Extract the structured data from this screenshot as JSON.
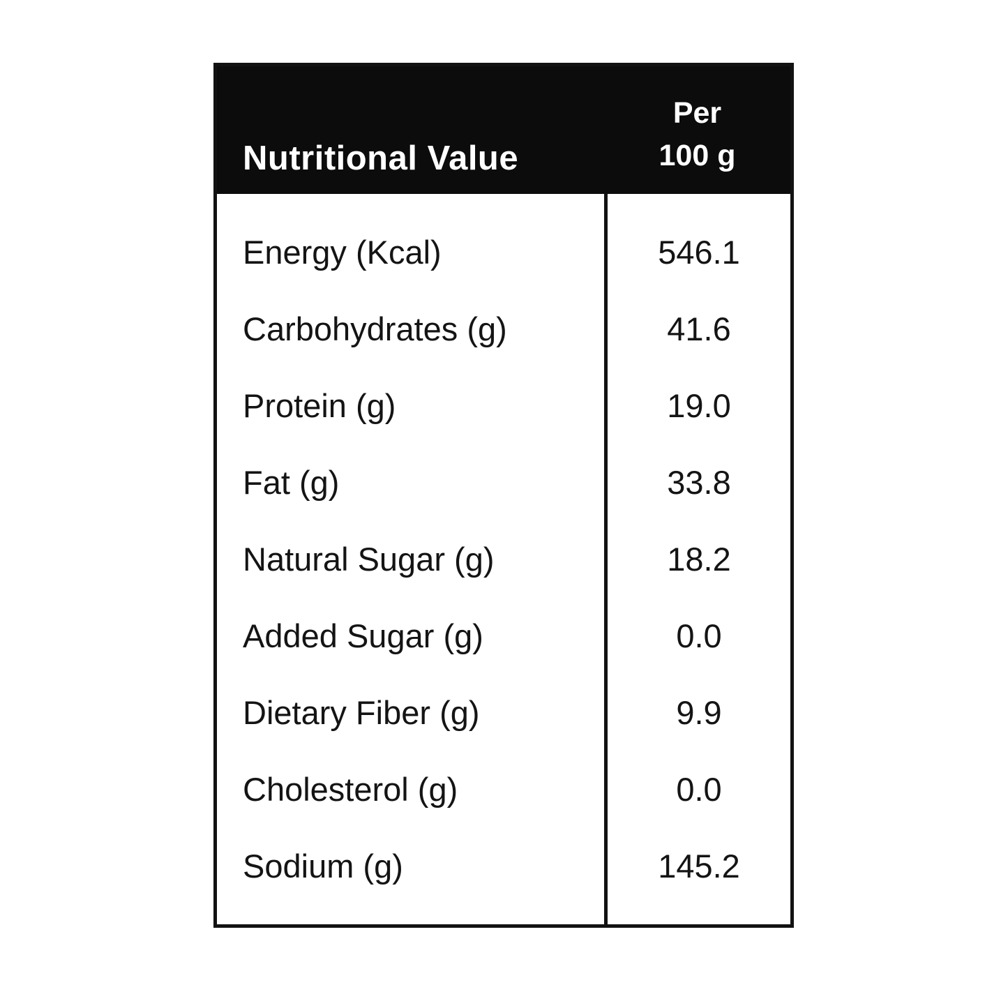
{
  "header": {
    "title": "Nutritional Value",
    "per_line1": "Per",
    "per_line2": "100 g"
  },
  "rows": [
    {
      "label": "Energy (Kcal)",
      "value": "546.1"
    },
    {
      "label": "Carbohydrates (g)",
      "value": "41.6"
    },
    {
      "label": "Protein (g)",
      "value": "19.0"
    },
    {
      "label": "Fat (g)",
      "value": "33.8"
    },
    {
      "label": "Natural Sugar (g)",
      "value": "18.2"
    },
    {
      "label": "Added Sugar (g)",
      "value": "0.0"
    },
    {
      "label": "Dietary Fiber (g)",
      "value": "9.9"
    },
    {
      "label": "Cholesterol (g)",
      "value": "0.0"
    },
    {
      "label": "Sodium (g)",
      "value": "145.2"
    }
  ],
  "colors": {
    "header_bg": "#0c0c0c",
    "border": "#121212",
    "text": "#141414",
    "background": "#ffffff"
  }
}
